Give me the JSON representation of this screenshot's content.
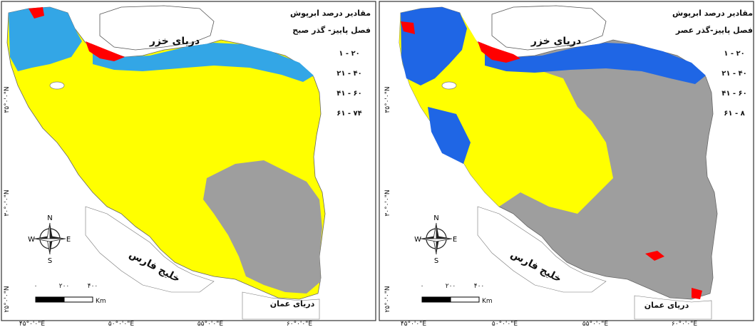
{
  "left_map": {
    "legend_title": "مقادیر درصد ابرپوش",
    "legend_subtitle": "فصل پاییز- گذر صبح",
    "legend_classes": [
      {
        "label": "۱ - ۲۰",
        "color": "#9e9e9e"
      },
      {
        "label": "۲۱ - ۴۰",
        "color": "#ffff00"
      },
      {
        "label": "۴۱ - ۶۰",
        "color": "#33a6e6"
      },
      {
        "label": "۶۱ - ۷۴",
        "color": "#ff0000"
      }
    ],
    "caspian_label": "دریای خزر",
    "gulf_label": "خلیج فارس",
    "oman_label": "دریای عمان",
    "lat_labels": [
      "۳۵°۰'۰\"N",
      "۳۰°۰'۰\"N",
      "۲۵°۰'۰\"N"
    ],
    "lon_labels": [
      "۴۵°۰'۰\"E",
      "۵۰°۰'۰\"E",
      "۵۵°۰'۰\"E",
      "۶۰°۰'۰\"E"
    ],
    "scale_labels": [
      "۰",
      "۲۰۰",
      "۴۰۰"
    ],
    "scale_unit": "Km",
    "compass": {
      "n": "N",
      "s": "S",
      "e": "E",
      "w": "W"
    }
  },
  "right_map": {
    "legend_title": "مقادیر درصد ابرپوش",
    "legend_subtitle": "فصل پاییز-گذر عصر",
    "legend_classes": [
      {
        "label": "۱ - ۲۰",
        "color": "#9e9e9e"
      },
      {
        "label": "۲۱ - ۴۰",
        "color": "#ffff00"
      },
      {
        "label": "۴۱ - ۶۰",
        "color": "#1f66e5"
      },
      {
        "label": "۶۱ - ۸",
        "color": "#ff0000"
      }
    ],
    "caspian_label": "دریای خزر",
    "gulf_label": "خلیج فارس",
    "oman_label": "دریای عمان",
    "lat_labels": [
      "۳۵°۰'۰\"N",
      "۳۰°۰'۰\"N",
      "۲۵°۰'۰\"N"
    ],
    "lon_labels": [
      "۴۵°۰'۰\"E",
      "۵۰°۰'۰\"E",
      "۵۵°۰'۰\"E",
      "۶۰°۰'۰\"E"
    ],
    "scale_labels": [
      "۰",
      "۲۰۰",
      "۴۰۰"
    ],
    "scale_unit": "Km",
    "compass": {
      "n": "N",
      "s": "S",
      "e": "E",
      "w": "W"
    }
  }
}
